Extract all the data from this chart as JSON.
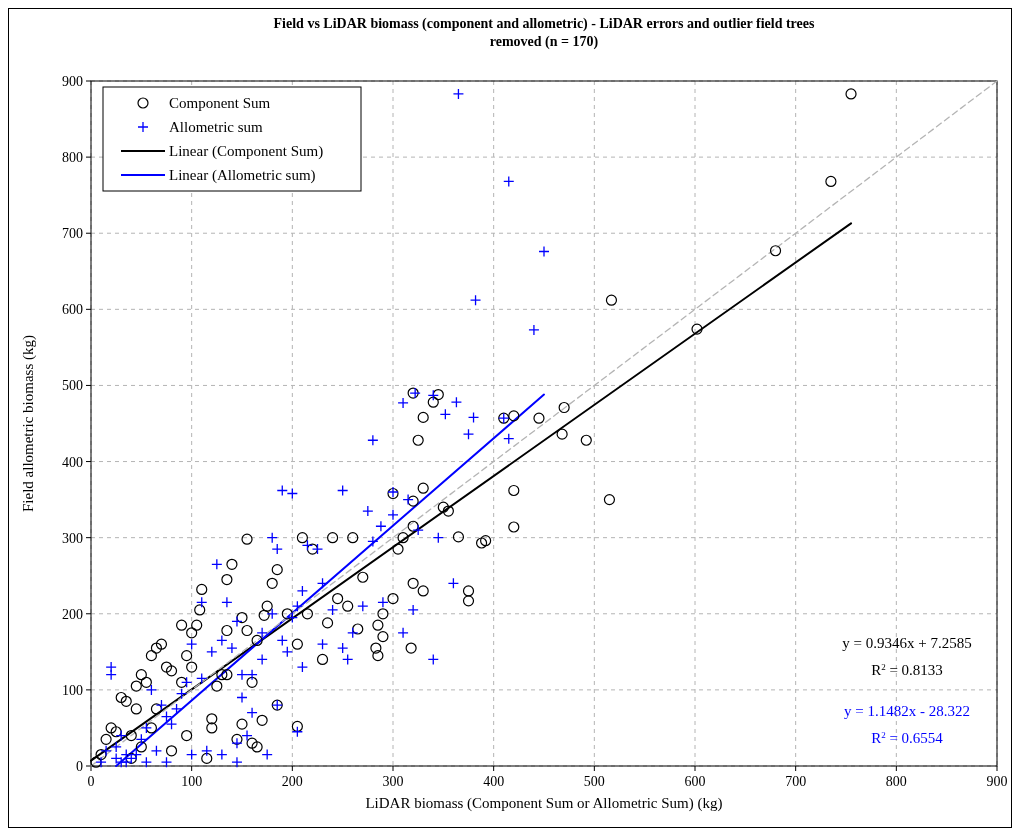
{
  "chart_data": {
    "type": "scatter",
    "title": "Field  vs LiDAR biomass (component and allometric) - LiDAR errors and outlier field trees removed  (n = 170)",
    "xlabel": "LiDAR biomass (Component Sum or Allometric Sum) (kg)",
    "ylabel": "Field allometric biomass (kg)",
    "xlim": [
      0,
      900
    ],
    "ylim": [
      0,
      900
    ],
    "xticks": [
      0,
      100,
      200,
      300,
      400,
      500,
      600,
      700,
      800,
      900
    ],
    "yticks": [
      0,
      100,
      200,
      300,
      400,
      500,
      600,
      700,
      800,
      900
    ],
    "grid": true,
    "legend": "top left",
    "series": [
      {
        "name": "Component Sum",
        "type": "scatter",
        "marker": "circle",
        "color": "#000000",
        "x": [
          755,
          735,
          680,
          517,
          602,
          470,
          420,
          410,
          445,
          468,
          492,
          515,
          420,
          420,
          375,
          375,
          392,
          388,
          365,
          355,
          350,
          345,
          340,
          320,
          330,
          325,
          330,
          320,
          320,
          320,
          330,
          318,
          300,
          300,
          305,
          310,
          290,
          285,
          283,
          290,
          285,
          270,
          265,
          255,
          260,
          240,
          245,
          235,
          230,
          220,
          215,
          210,
          205,
          205,
          195,
          185,
          185,
          180,
          175,
          172,
          165,
          160,
          160,
          155,
          155,
          150,
          150,
          140,
          135,
          135,
          135,
          130,
          125,
          120,
          110,
          108,
          105,
          100,
          100,
          95,
          95,
          90,
          90,
          80,
          75,
          70,
          65,
          65,
          60,
          55,
          50,
          50,
          45,
          45,
          40,
          40,
          35,
          30,
          25,
          20,
          15,
          10,
          5,
          60,
          80,
          120,
          145,
          115,
          165,
          170
        ],
        "values": [
          883,
          768,
          677,
          612,
          574,
          471,
          460,
          457,
          457,
          436,
          428,
          350,
          362,
          314,
          230,
          217,
          296,
          293,
          301,
          335,
          340,
          488,
          478,
          490,
          458,
          428,
          365,
          348,
          315,
          240,
          230,
          155,
          358,
          220,
          285,
          300,
          200,
          145,
          155,
          170,
          185,
          248,
          180,
          210,
          300,
          300,
          220,
          188,
          140,
          285,
          200,
          300,
          52,
          160,
          200,
          80,
          258,
          240,
          210,
          198,
          165,
          110,
          30,
          298,
          178,
          195,
          55,
          265,
          245,
          178,
          120,
          120,
          105,
          62,
          232,
          205,
          185,
          175,
          130,
          40,
          145,
          185,
          110,
          125,
          130,
          160,
          155,
          75,
          145,
          110,
          120,
          25,
          105,
          75,
          40,
          10,
          85,
          90,
          45,
          50,
          35,
          15,
          5,
          50,
          20,
          50,
          35,
          10,
          25,
          60
        ]
      },
      {
        "name": "Allometric sum",
        "type": "scatter",
        "marker": "cross",
        "color": "#0000ff",
        "x": [
          365,
          415,
          450,
          382,
          440,
          322,
          340,
          352,
          363,
          375,
          380,
          410,
          415,
          310,
          280,
          300,
          250,
          190,
          200,
          180,
          185,
          215,
          225,
          275,
          280,
          288,
          300,
          315,
          325,
          360,
          345,
          340,
          320,
          310,
          290,
          270,
          260,
          250,
          240,
          230,
          210,
          205,
          200,
          195,
          190,
          185,
          180,
          170,
          170,
          160,
          150,
          145,
          140,
          135,
          130,
          125,
          120,
          110,
          110,
          100,
          95,
          90,
          85,
          80,
          75,
          70,
          65,
          60,
          55,
          50,
          45,
          40,
          35,
          30,
          25,
          20,
          20,
          25,
          15,
          10,
          30,
          35,
          55,
          75,
          100,
          115,
          130,
          145,
          155,
          160,
          175,
          205,
          210,
          230,
          255,
          150,
          145
        ],
        "values": [
          883,
          768,
          676,
          612,
          573,
          490,
          487,
          462,
          478,
          436,
          458,
          457,
          430,
          477,
          428,
          360,
          362,
          362,
          358,
          300,
          285,
          290,
          285,
          335,
          295,
          315,
          330,
          350,
          310,
          240,
          300,
          140,
          205,
          175,
          215,
          210,
          175,
          155,
          205,
          240,
          230,
          210,
          195,
          150,
          165,
          80,
          200,
          175,
          140,
          120,
          90,
          190,
          155,
          215,
          165,
          265,
          150,
          215,
          115,
          160,
          110,
          95,
          75,
          55,
          65,
          80,
          20,
          100,
          50,
          35,
          15,
          10,
          15,
          40,
          10,
          120,
          130,
          25,
          20,
          5,
          5,
          5,
          5,
          5,
          15,
          20,
          15,
          5,
          40,
          70,
          15,
          45,
          130,
          160,
          140,
          120,
          30
        ]
      },
      {
        "name": "Linear (Component Sum)",
        "type": "line",
        "color": "#000000",
        "line_style": "solid",
        "x": [
          0,
          755
        ],
        "values": [
          7,
          713
        ]
      },
      {
        "name": "Linear (Allometric sum)",
        "type": "line",
        "color": "#0000ff",
        "line_style": "solid",
        "x": [
          25,
          450
        ],
        "values": [
          0,
          488
        ]
      },
      {
        "type": "line",
        "color": "#b4b4b4",
        "line_style": "dashed",
        "x": [
          0,
          900
        ],
        "values": [
          0,
          900
        ]
      }
    ],
    "annotations": [
      "y = 0.9346x + 7.2585",
      "R$^{2}$ = 0.8133",
      "y = 1.1482x - 28.322",
      "R$^{2}$ = 0.6554"
    ]
  }
}
